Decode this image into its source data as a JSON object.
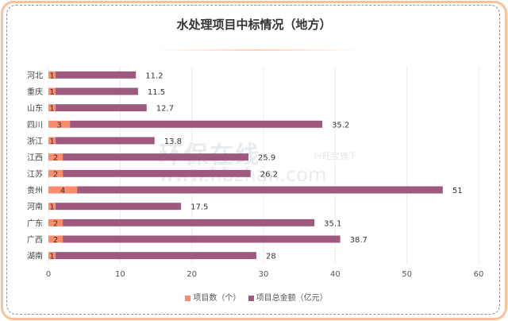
{
  "chart_data": {
    "type": "bar",
    "orientation": "horizontal",
    "stacked": true,
    "title": "水处理项目中标情况（地方）",
    "categories": [
      "河北",
      "重庆",
      "山东",
      "四川",
      "浙江",
      "江西",
      "江苏",
      "贵州",
      "河南",
      "广东",
      "广西",
      "湖南"
    ],
    "series": [
      {
        "name": "项目数（个）",
        "color": "#fa8c6b",
        "values": [
          1,
          1,
          1,
          3,
          1,
          2,
          2,
          4,
          1,
          2,
          2,
          1
        ]
      },
      {
        "name": "项目总金额（亿元）",
        "color": "#9e5a7e",
        "values": [
          11.2,
          11.5,
          12.7,
          35.2,
          13.8,
          25.9,
          26.2,
          51,
          17.5,
          35.1,
          38.7,
          28
        ]
      }
    ],
    "xlim": [
      0,
      60
    ],
    "xticks": [
      "0",
      "10",
      "20",
      "30",
      "40",
      "50",
      "60"
    ],
    "grid": true,
    "legend": "bottom"
  },
  "watermark": {
    "name": "环保在线",
    "tagline": "兴旺宝旗下",
    "site": "www.hbzhan.com"
  }
}
